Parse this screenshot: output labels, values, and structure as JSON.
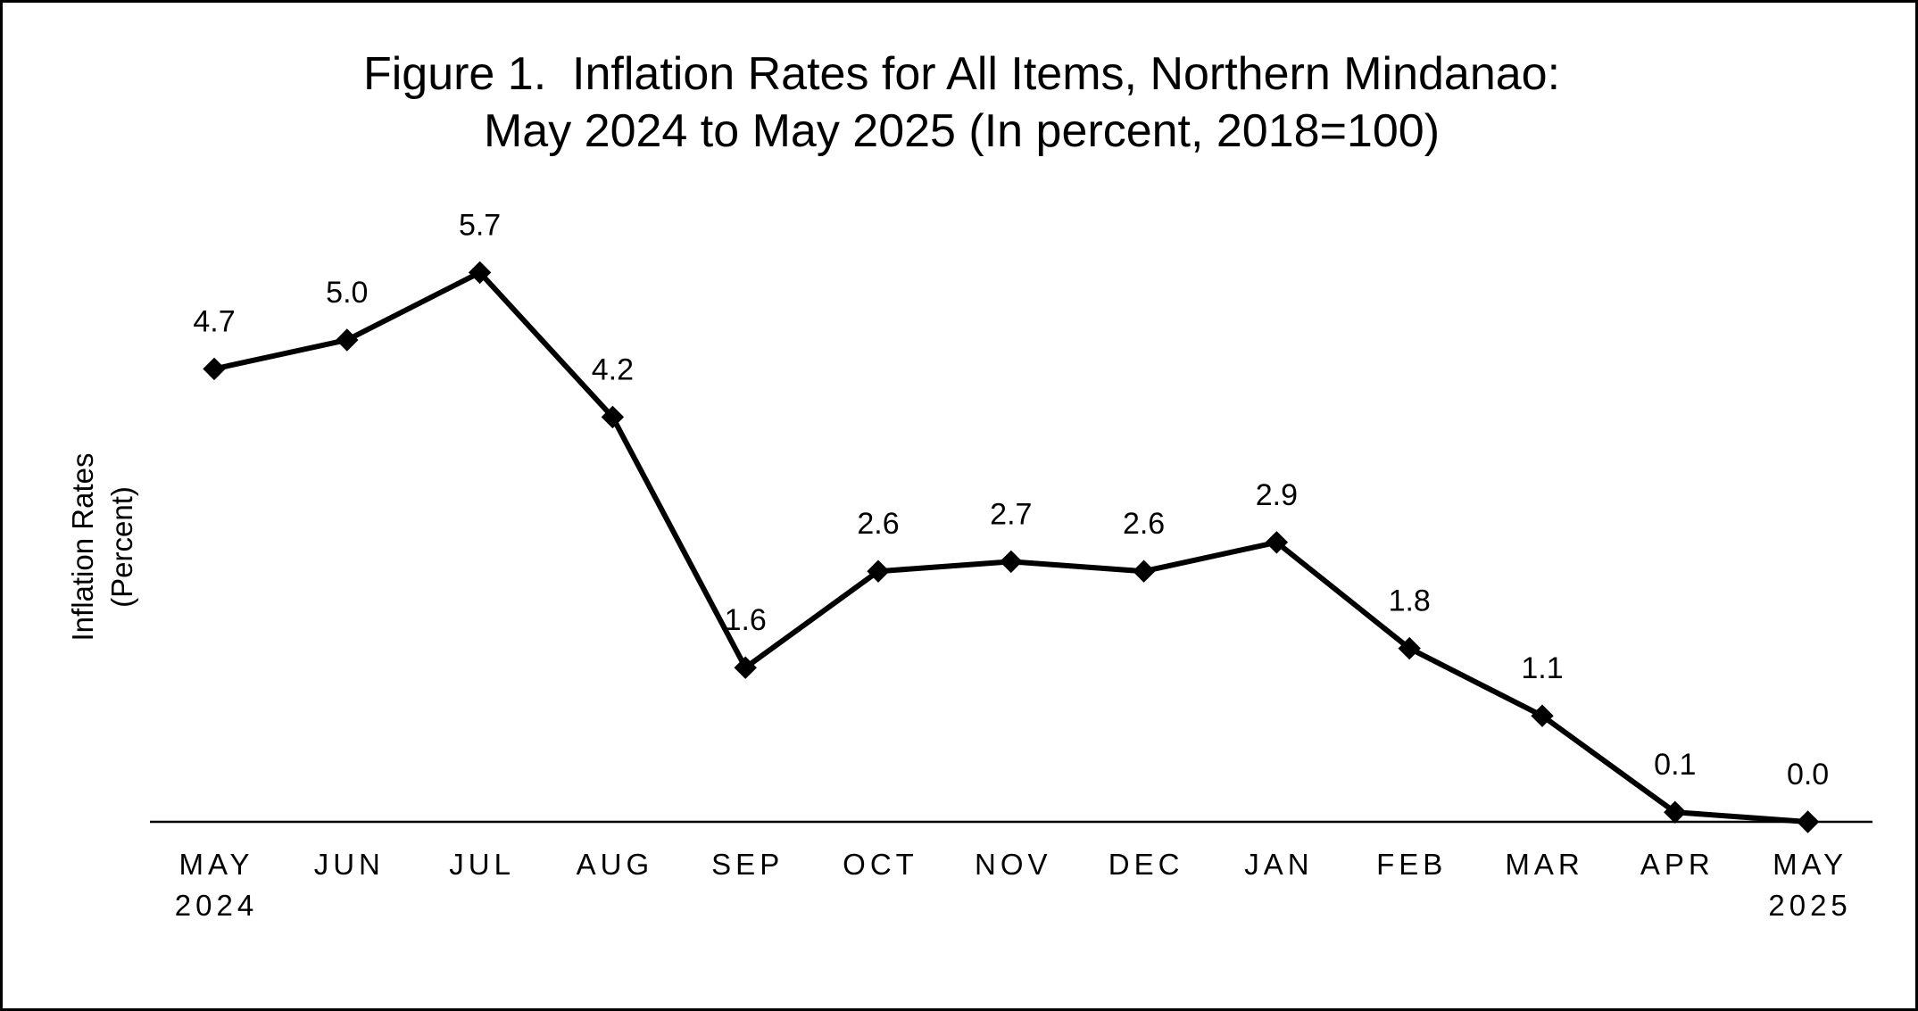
{
  "chart_data": {
    "type": "line",
    "title": [
      "Figure 1.  Inflation Rates for All Items, Northern Mindanao:",
      "May 2024 to May 2025 (In percent, 2018=100)"
    ],
    "ylabel": [
      "Inflation Rates",
      "(Percent)"
    ],
    "xlabel": "",
    "categories": [
      [
        "MAY",
        "2024"
      ],
      [
        "JUN"
      ],
      [
        "JUL"
      ],
      [
        "AUG"
      ],
      [
        "SEP"
      ],
      [
        "OCT"
      ],
      [
        "NOV"
      ],
      [
        "DEC"
      ],
      [
        "JAN"
      ],
      [
        "FEB"
      ],
      [
        "MAR"
      ],
      [
        "APR"
      ],
      [
        "MAY",
        "2025"
      ]
    ],
    "series": [
      {
        "values": [
          4.7,
          5.0,
          5.7,
          4.2,
          1.6,
          2.6,
          2.7,
          2.6,
          2.9,
          1.8,
          1.1,
          0.1,
          0.0
        ],
        "labels": [
          "4.7",
          "5.0",
          "5.7",
          "4.2",
          "1.6",
          "2.6",
          "2.7",
          "2.6",
          "2.9",
          "1.8",
          "1.1",
          "0.1",
          "0.0"
        ],
        "color": "#000000",
        "marker": "diamond"
      }
    ],
    "ylim": [
      0,
      6
    ],
    "grid": false,
    "legend": "none"
  }
}
